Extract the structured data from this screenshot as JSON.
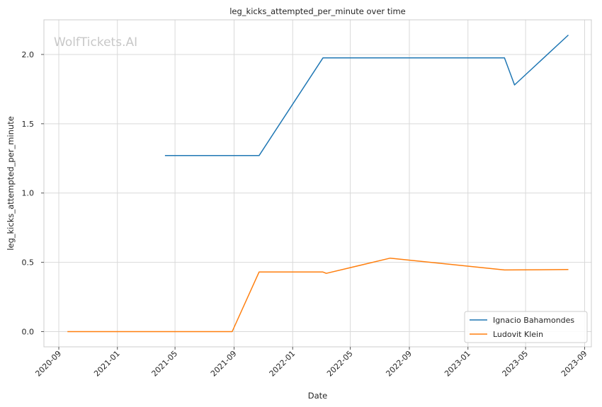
{
  "chart_data": {
    "type": "line",
    "title": "leg_kicks_attempted_per_minute over time",
    "xlabel": "Date",
    "ylabel": "leg_kicks_attempted_per_minute",
    "watermark": "WolfTickets.AI",
    "xlim": [
      "2020-08-01",
      "2023-09-15"
    ],
    "ylim": [
      -0.11,
      2.25
    ],
    "x_ticks": [
      "2020-09",
      "2021-01",
      "2021-05",
      "2021-09",
      "2022-01",
      "2022-05",
      "2022-09",
      "2023-01",
      "2023-05",
      "2023-09"
    ],
    "y_ticks": [
      "0.0",
      "0.5",
      "1.0",
      "1.5",
      "2.0"
    ],
    "grid": true,
    "legend_position": "bottom-right",
    "series": [
      {
        "name": "Ignacio Bahamondes",
        "color": "#1f77b4",
        "points": [
          {
            "x": "2021-04-10",
            "y": 1.27
          },
          {
            "x": "2021-10-23",
            "y": 1.27
          },
          {
            "x": "2022-03-05",
            "y": 1.975
          },
          {
            "x": "2023-03-18",
            "y": 1.975
          },
          {
            "x": "2023-04-08",
            "y": 1.78
          },
          {
            "x": "2023-07-29",
            "y": 2.14
          }
        ]
      },
      {
        "name": "Ludovit Klein",
        "color": "#ff7f0e",
        "points": [
          {
            "x": "2020-09-19",
            "y": 0.0
          },
          {
            "x": "2021-08-28",
            "y": 0.0
          },
          {
            "x": "2021-10-23",
            "y": 0.43
          },
          {
            "x": "2022-03-05",
            "y": 0.43
          },
          {
            "x": "2022-03-12",
            "y": 0.42
          },
          {
            "x": "2022-07-23",
            "y": 0.53
          },
          {
            "x": "2023-03-18",
            "y": 0.445
          },
          {
            "x": "2023-07-29",
            "y": 0.448
          }
        ]
      }
    ]
  }
}
